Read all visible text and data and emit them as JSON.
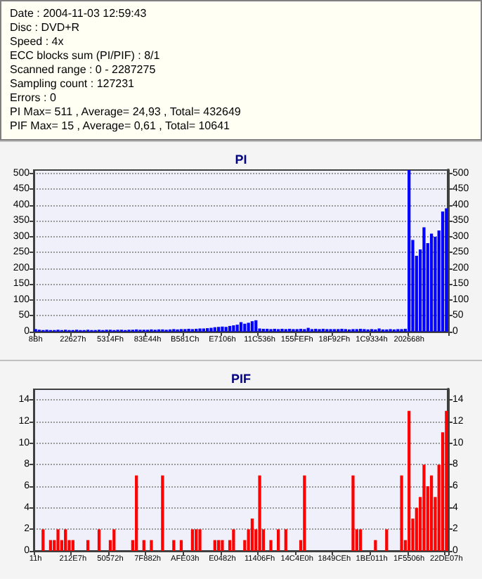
{
  "chart_data": [
    {
      "type": "other",
      "annotations": [
        "Date : 2004-11-03 12:59:43",
        "Disc : DVD+R",
        "Speed : 4x",
        "ECC blocks sum (PI/PIF) : 8/1",
        "Scanned range : 0 - 2287275",
        "Sampling count : 127231",
        "Errors : 0",
        "PI Max= 511 , Average= 24,93 , Total= 432649",
        "PIF Max= 15 , Average= 0,61 , Total= 10641"
      ]
    },
    {
      "type": "bar",
      "title": "PI",
      "color": "#0000ff",
      "grid": "y",
      "ylim": [
        0,
        511
      ],
      "yticks": [
        0,
        50,
        100,
        150,
        200,
        250,
        300,
        350,
        400,
        450,
        500
      ],
      "y2lim": [
        0,
        511
      ],
      "y2ticks": [
        0,
        50,
        100,
        150,
        200,
        250,
        300,
        350,
        400,
        450,
        500
      ],
      "categories": [
        "8Bh",
        null,
        null,
        null,
        null,
        null,
        null,
        null,
        null,
        null,
        "22627h",
        null,
        null,
        null,
        null,
        null,
        null,
        null,
        null,
        null,
        "5314Fh",
        null,
        null,
        null,
        null,
        null,
        null,
        null,
        null,
        null,
        "83E44h",
        null,
        null,
        null,
        null,
        null,
        null,
        null,
        null,
        null,
        "B581Ch",
        null,
        null,
        null,
        null,
        null,
        null,
        null,
        null,
        null,
        "E7106h",
        null,
        null,
        null,
        null,
        null,
        null,
        null,
        null,
        null,
        "11C536h",
        null,
        null,
        null,
        null,
        null,
        null,
        null,
        null,
        null,
        "155FEFh",
        null,
        null,
        null,
        null,
        null,
        null,
        null,
        null,
        null,
        "18F92Fh",
        null,
        null,
        null,
        null,
        null,
        null,
        null,
        null,
        null,
        "1C9334h",
        null,
        null,
        null,
        null,
        null,
        null,
        null,
        null,
        null,
        "202668h",
        null,
        null,
        null,
        null,
        null,
        null,
        null,
        null,
        null,
        null
      ],
      "values": [
        8,
        6,
        5,
        6,
        5,
        5,
        6,
        5,
        6,
        5,
        5,
        6,
        5,
        5,
        6,
        5,
        5,
        6,
        5,
        6,
        6,
        5,
        6,
        6,
        5,
        6,
        6,
        7,
        6,
        6,
        6,
        7,
        6,
        7,
        7,
        6,
        7,
        8,
        7,
        8,
        8,
        9,
        8,
        9,
        10,
        10,
        11,
        12,
        14,
        15,
        16,
        15,
        18,
        20,
        22,
        30,
        25,
        28,
        33,
        36,
        10,
        9,
        9,
        8,
        9,
        8,
        9,
        8,
        9,
        8,
        8,
        9,
        8,
        12,
        8,
        9,
        8,
        9,
        8,
        8,
        8,
        8,
        9,
        8,
        7,
        8,
        8,
        9,
        8,
        7,
        8,
        7,
        10,
        7,
        7,
        8,
        7,
        8,
        8,
        9,
        511,
        290,
        240,
        260,
        330,
        280,
        310,
        300,
        320,
        380,
        390
      ]
    },
    {
      "type": "bar",
      "title": "PIF",
      "color": "#ff0000",
      "grid": "y",
      "ylim": [
        0,
        15
      ],
      "yticks": [
        0,
        2,
        4,
        6,
        8,
        10,
        12,
        14
      ],
      "y2lim": [
        0,
        15
      ],
      "y2ticks": [
        0,
        2,
        4,
        6,
        8,
        10,
        12,
        14
      ],
      "categories": [
        "11h",
        null,
        null,
        null,
        null,
        null,
        null,
        null,
        null,
        null,
        "212E7h",
        null,
        null,
        null,
        null,
        null,
        null,
        null,
        null,
        null,
        "50572h",
        null,
        null,
        null,
        null,
        null,
        null,
        null,
        null,
        null,
        "7F882h",
        null,
        null,
        null,
        null,
        null,
        null,
        null,
        null,
        null,
        "AFE03h",
        null,
        null,
        null,
        null,
        null,
        null,
        null,
        null,
        null,
        "E0482h",
        null,
        null,
        null,
        null,
        null,
        null,
        null,
        null,
        null,
        "11406Fh",
        null,
        null,
        null,
        null,
        null,
        null,
        null,
        null,
        null,
        "14C4E0h",
        null,
        null,
        null,
        null,
        null,
        null,
        null,
        null,
        null,
        "1849CEh",
        null,
        null,
        null,
        null,
        null,
        null,
        null,
        null,
        null,
        "1BE011h",
        null,
        null,
        null,
        null,
        null,
        null,
        null,
        null,
        null,
        "1F5506h",
        null,
        null,
        null,
        null,
        null,
        null,
        null,
        null,
        null,
        "22DE07h"
      ],
      "values": [
        0,
        0,
        2,
        0,
        1,
        1,
        2,
        1,
        2,
        1,
        1,
        0,
        0,
        0,
        1,
        0,
        0,
        2,
        0,
        0,
        1,
        2,
        0,
        0,
        0,
        0,
        1,
        7,
        0,
        1,
        0,
        1,
        0,
        0,
        7,
        0,
        0,
        1,
        0,
        1,
        0,
        0,
        2,
        2,
        2,
        0,
        0,
        0,
        1,
        1,
        1,
        0,
        1,
        2,
        0,
        0,
        1,
        2,
        3,
        2,
        7,
        2,
        0,
        1,
        0,
        2,
        0,
        2,
        0,
        0,
        0,
        1,
        7,
        0,
        0,
        0,
        0,
        0,
        0,
        0,
        0,
        0,
        0,
        0,
        0,
        7,
        2,
        2,
        0,
        0,
        0,
        1,
        0,
        0,
        2,
        0,
        0,
        0,
        7,
        1,
        13,
        3,
        4,
        5,
        8,
        6,
        7,
        5,
        8,
        11,
        13
      ]
    }
  ]
}
